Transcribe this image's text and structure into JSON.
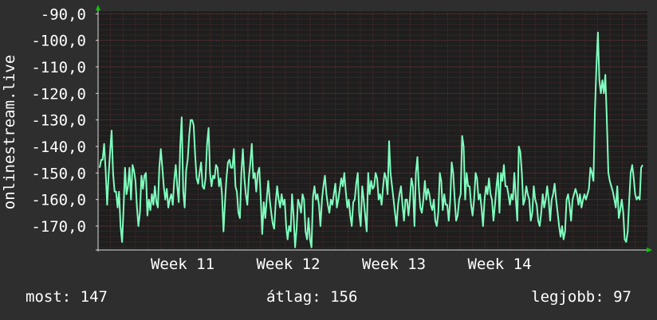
{
  "chart_data": {
    "type": "line",
    "ylabel": "onlinestream.live",
    "ylim": [
      -179,
      -89
    ],
    "y_ticks": [
      "-90,0",
      "-100,0",
      "-110,0",
      "-120,0",
      "-130,0",
      "-140,0",
      "-150,0",
      "-160,0",
      "-170,0"
    ],
    "y_tick_values": [
      -90,
      -100,
      -110,
      -120,
      -130,
      -140,
      -150,
      -160,
      -170
    ],
    "x_ticks": [
      "Week 11",
      "Week 12",
      "Week 13",
      "Week 14"
    ],
    "x_tick_positions": [
      0.2,
      0.45,
      0.7,
      0.95
    ],
    "x_range": [
      0,
      1.3
    ],
    "grid": true,
    "colors": {
      "background": "#2e2e2e",
      "plot": "#1e1e1e",
      "line": "#7fffbf",
      "grid": "#6a3434",
      "axis_arrow": "#00cc00"
    },
    "series": [
      {
        "values": [
          -148,
          -145,
          -145,
          -139,
          -149,
          -162,
          -151,
          -142,
          -134,
          -150,
          -157,
          -157,
          -163,
          -157,
          -170,
          -176,
          -164,
          -148,
          -158,
          -155,
          -148,
          -160,
          -147,
          -149,
          -153,
          -163,
          -170,
          -165,
          -151,
          -156,
          -151,
          -150,
          -166,
          -160,
          -164,
          -158,
          -162,
          -155,
          -161,
          -163,
          -148,
          -141,
          -148,
          -155,
          -160,
          -156,
          -163,
          -160,
          -158,
          -162,
          -153,
          -147,
          -155,
          -161,
          -140,
          -129,
          -157,
          -163,
          -149,
          -145,
          -136,
          -130,
          -130,
          -132,
          -143,
          -152,
          -154,
          -150,
          -146,
          -155,
          -156,
          -152,
          -139,
          -133,
          -150,
          -155,
          -151,
          -152,
          -147,
          -148,
          -155,
          -152,
          -158,
          -172,
          -161,
          -152,
          -146,
          -145,
          -148,
          -148,
          -141,
          -155,
          -157,
          -165,
          -167,
          -150,
          -141,
          -152,
          -158,
          -162,
          -152,
          -146,
          -139,
          -152,
          -150,
          -157,
          -150,
          -148,
          -160,
          -173,
          -161,
          -167,
          -160,
          -153,
          -160,
          -165,
          -169,
          -171,
          -161,
          -155,
          -160,
          -163,
          -158,
          -162,
          -160,
          -170,
          -175,
          -170,
          -172,
          -158,
          -166,
          -178,
          -171,
          -160,
          -162,
          -165,
          -158,
          -160,
          -172,
          -175,
          -167,
          -175,
          -178,
          -159,
          -155,
          -160,
          -158,
          -162,
          -170,
          -160,
          -155,
          -151,
          -158,
          -162,
          -165,
          -160,
          -162,
          -158,
          -154,
          -163,
          -160,
          -156,
          -152,
          -155,
          -150,
          -157,
          -163,
          -160,
          -166,
          -170,
          -161,
          -160,
          -154,
          -150,
          -165,
          -170,
          -155,
          -160,
          -166,
          -172,
          -150,
          -158,
          -153,
          -156,
          -155,
          -150,
          -152,
          -160,
          -158,
          -162,
          -155,
          -150,
          -152,
          -158,
          -138,
          -150,
          -155,
          -160,
          -165,
          -170,
          -162,
          -158,
          -155,
          -162,
          -168,
          -160,
          -160,
          -166,
          -160,
          -152,
          -155,
          -170,
          -150,
          -144,
          -156,
          -163,
          -165,
          -160,
          -153,
          -160,
          -156,
          -158,
          -162,
          -164,
          -160,
          -168,
          -170,
          -165,
          -150,
          -153,
          -164,
          -158,
          -162,
          -162,
          -168,
          -160,
          -146,
          -150,
          -160,
          -168,
          -166,
          -160,
          -158,
          -136,
          -140,
          -160,
          -150,
          -155,
          -155,
          -162,
          -166,
          -160,
          -150,
          -152,
          -160,
          -158,
          -163,
          -170,
          -160,
          -155,
          -158,
          -152,
          -158,
          -160,
          -168,
          -162,
          -155,
          -150,
          -165,
          -150,
          -153,
          -147,
          -155,
          -155,
          -158,
          -162,
          -158,
          -160,
          -150,
          -160,
          -168,
          -140,
          -142,
          -150,
          -162,
          -160,
          -155,
          -158,
          -160,
          -168,
          -165,
          -155,
          -160,
          -162,
          -168,
          -170,
          -165,
          -158,
          -163,
          -160,
          -155,
          -160,
          -168,
          -160,
          -158,
          -154,
          -160,
          -165,
          -170,
          -174,
          -170,
          -175,
          -172,
          -160,
          -158,
          -162,
          -168,
          -160,
          -158,
          -156,
          -158,
          -162,
          -158,
          -163,
          -160,
          -158,
          -160,
          -158,
          -156,
          -148,
          -150,
          -153,
          -127,
          -110,
          -97,
          -115,
          -120,
          -115,
          -120,
          -113,
          -130,
          -150,
          -153,
          -155,
          -157,
          -160,
          -163,
          -155,
          -167,
          -164,
          -160,
          -165,
          -175,
          -176,
          -172,
          -160,
          -150,
          -147,
          -152,
          -158,
          -160,
          -159,
          -160,
          -148,
          -147
        ]
      }
    ]
  },
  "footer": {
    "current": "most: 147",
    "average": "átlag: 156",
    "best": "legjobb: 97"
  }
}
